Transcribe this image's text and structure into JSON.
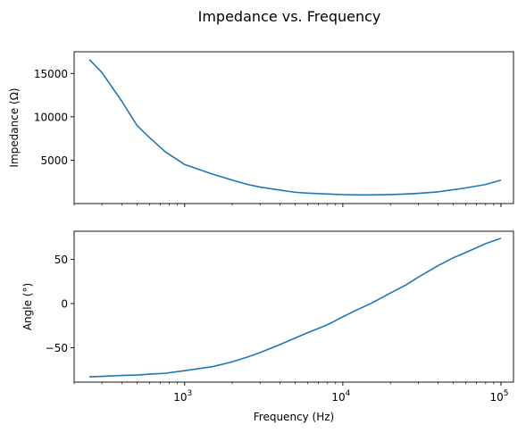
{
  "suptitle": "Impedance vs. Frequency",
  "chart_data": [
    {
      "type": "line",
      "panel": "top",
      "xscale": "log",
      "xlim": [
        200,
        120000
      ],
      "ylim": [
        0,
        17500
      ],
      "ylabel": "Impedance (Ω)",
      "xlabel": "",
      "yticks": [
        5000,
        10000,
        15000
      ],
      "ytick_labels": [
        "5000",
        "10000",
        "15000"
      ],
      "series": [
        {
          "color": "#1f77b4",
          "x": [
            250,
            300,
            400,
            500,
            600,
            750,
            1000,
            1500,
            2000,
            2500,
            3000,
            4000,
            5000,
            6000,
            8000,
            10000,
            12000,
            15000,
            20000,
            25000,
            30000,
            40000,
            50000,
            60000,
            80000,
            100000
          ],
          "y": [
            16600,
            15100,
            11800,
            9000,
            7600,
            6000,
            4500,
            3400,
            2700,
            2200,
            1900,
            1550,
            1300,
            1200,
            1100,
            1030,
            1000,
            1000,
            1040,
            1100,
            1180,
            1350,
            1600,
            1800,
            2200,
            2700
          ]
        }
      ]
    },
    {
      "type": "line",
      "panel": "bottom",
      "xscale": "log",
      "xlim": [
        200,
        120000
      ],
      "ylim": [
        -89,
        82
      ],
      "ylabel": "Angle (°)",
      "xlabel": "Frequency (Hz)",
      "yticks": [
        -50,
        0,
        50
      ],
      "ytick_labels": [
        "−50",
        "0",
        "50"
      ],
      "xticks": [
        1000,
        10000,
        100000
      ],
      "xtick_labels": [
        {
          "base": "10",
          "exp": "3"
        },
        {
          "base": "10",
          "exp": "4"
        },
        {
          "base": "10",
          "exp": "5"
        }
      ],
      "series": [
        {
          "color": "#1f77b4",
          "x": [
            250,
            300,
            400,
            500,
            600,
            750,
            1000,
            1500,
            2000,
            2500,
            3000,
            4000,
            5000,
            6000,
            8000,
            10000,
            12000,
            15000,
            20000,
            25000,
            30000,
            40000,
            50000,
            60000,
            80000,
            100000
          ],
          "y": [
            -83,
            -82.5,
            -81.5,
            -81,
            -80,
            -79,
            -76,
            -71.5,
            -66,
            -60.5,
            -55.5,
            -46.5,
            -39,
            -33,
            -24,
            -15,
            -8,
            0,
            12,
            21,
            30,
            43,
            52,
            58,
            68,
            74
          ]
        }
      ]
    }
  ]
}
